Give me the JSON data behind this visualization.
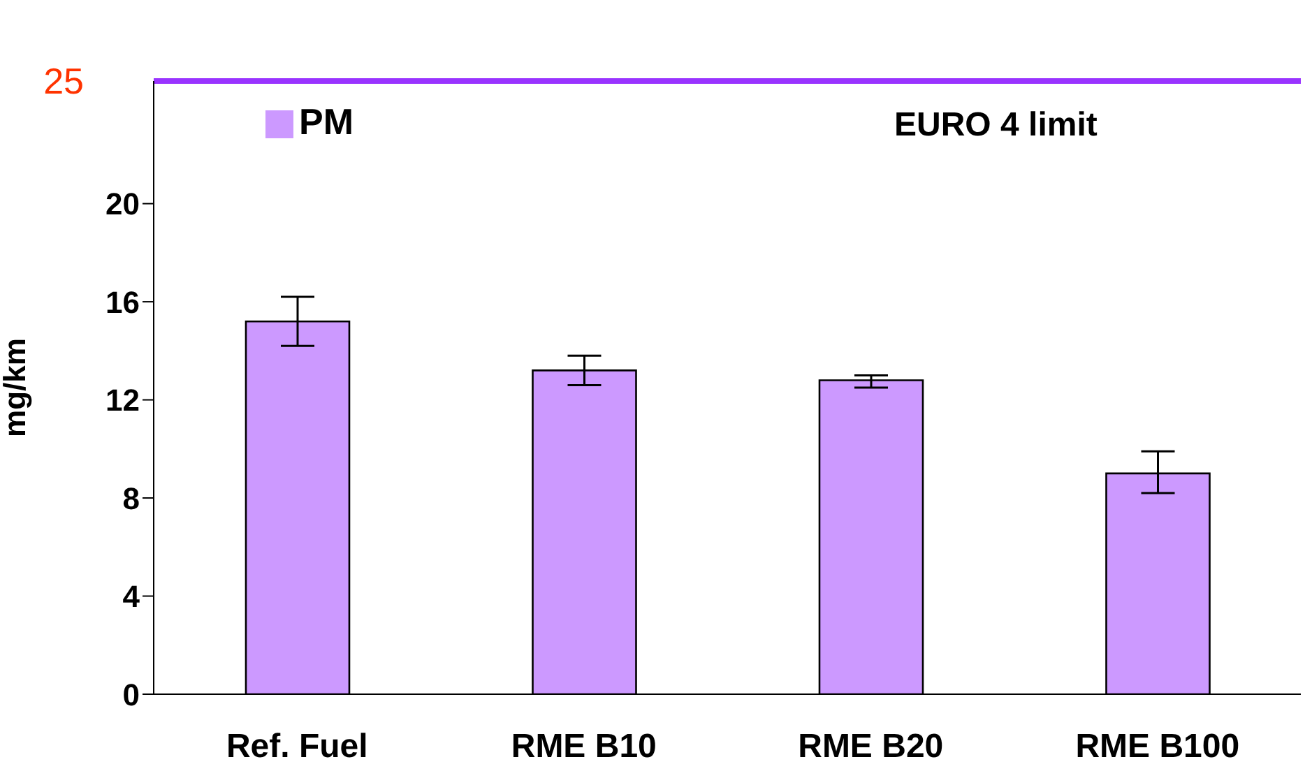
{
  "chart_data": {
    "type": "bar",
    "ylabel": "mg/km",
    "categories": [
      "Ref. Fuel",
      "RME B10",
      "RME B20",
      "RME B100"
    ],
    "series": [
      {
        "name": "PM",
        "color": "#cc99ff",
        "values": [
          15.2,
          13.2,
          12.8,
          9.0
        ],
        "errors": [
          [
            14.2,
            16.2
          ],
          [
            12.6,
            13.8
          ],
          [
            12.5,
            13.0
          ],
          [
            8.2,
            9.9
          ]
        ]
      }
    ],
    "ylim": [
      0,
      25
    ],
    "yticks": [
      0,
      4,
      8,
      12,
      16,
      20
    ],
    "grid": false,
    "legend": "top left",
    "ref_lines": [
      {
        "axis": "y",
        "value": 25,
        "label": "25",
        "color": "#9933ff"
      }
    ],
    "annotations": [
      "EURO 4 limit"
    ]
  }
}
